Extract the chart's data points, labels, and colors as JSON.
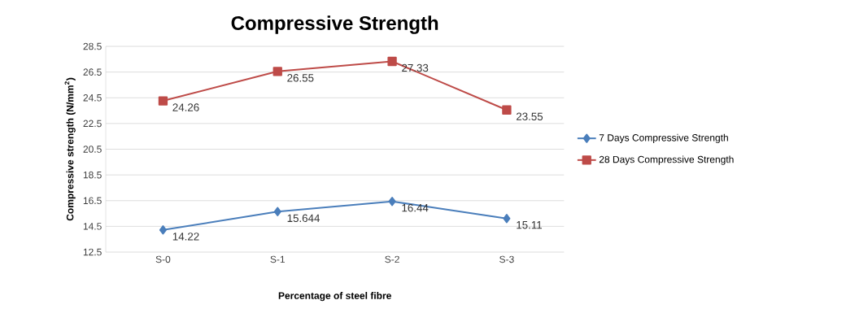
{
  "chart_data": {
    "type": "line",
    "title": "Compressive Strength",
    "xlabel": "Percentage of steel fibre",
    "ylabel": "Compressive strength (N/mm$^{2}$)",
    "categories": [
      "S-0",
      "S-1",
      "S-2",
      "S-3"
    ],
    "series": [
      {
        "name": "7 Days Compressive  Strength",
        "color": "#4a7ebb",
        "marker": "diamond",
        "values": [
          14.22,
          15.644,
          16.44,
          15.11
        ]
      },
      {
        "name": "28 Days Compressive  Strength",
        "color": "#be4b48",
        "marker": "square",
        "values": [
          24.26,
          26.55,
          27.33,
          23.55
        ]
      }
    ],
    "ylim": [
      12.5,
      28.5
    ],
    "yticks": [
      12.5,
      14.5,
      16.5,
      18.5,
      20.5,
      22.5,
      24.5,
      26.5,
      28.5
    ],
    "grid": "y",
    "legend": "right",
    "data_labels": true
  }
}
